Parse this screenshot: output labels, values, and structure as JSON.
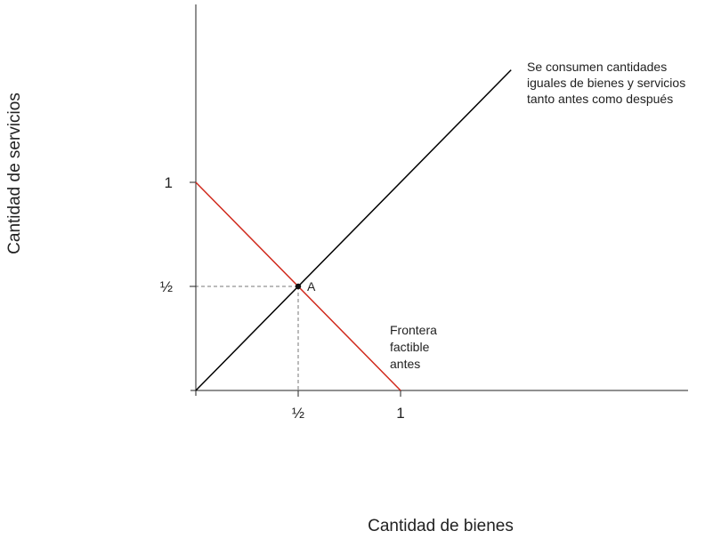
{
  "chart_data": {
    "type": "line",
    "xlabel": "Cantidad de bienes",
    "ylabel": "Cantidad de servicios",
    "xlim": [
      0,
      2.4
    ],
    "ylim": [
      0,
      2
    ],
    "x_ticks": [
      {
        "value": 0.5,
        "label": "½"
      },
      {
        "value": 1,
        "label": "1"
      }
    ],
    "y_ticks": [
      {
        "value": 0.5,
        "label": "½"
      },
      {
        "value": 1,
        "label": "1"
      }
    ],
    "grid": false,
    "series": [
      {
        "name": "Frontera factible antes",
        "color": "#d0291c",
        "x": [
          0,
          1
        ],
        "y": [
          1,
          0
        ]
      },
      {
        "name": "Se consumen cantidades iguales de bienes y servicios tanto antes como después",
        "color": "#000000",
        "x": [
          0,
          1.54
        ],
        "y": [
          0,
          1.54
        ]
      }
    ],
    "points": [
      {
        "label": "A",
        "x": 0.5,
        "y": 0.5
      }
    ],
    "guides": [
      {
        "from": [
          0.5,
          0.5
        ],
        "to": [
          0,
          0.5
        ]
      },
      {
        "from": [
          0.5,
          0.5
        ],
        "to": [
          0.5,
          0
        ]
      }
    ],
    "annotations": {
      "diagonal": [
        "Se consumen cantidades",
        "iguales de bienes y servicios",
        "tanto antes como después"
      ],
      "frontier": [
        "Frontera",
        "factible",
        "antes"
      ]
    }
  }
}
